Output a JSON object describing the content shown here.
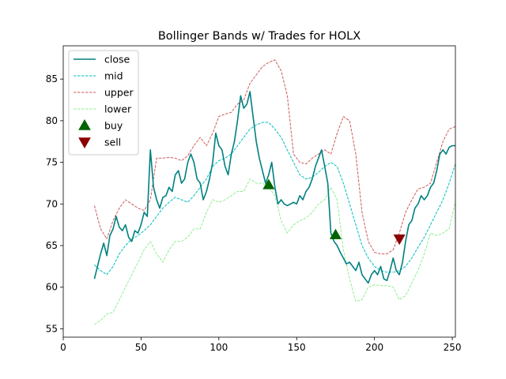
{
  "chart_data": {
    "type": "line",
    "title": "Bollinger Bands w/ Trades for HOLX",
    "xlabel": "",
    "ylabel": "",
    "xlim": [
      0,
      252
    ],
    "ylim": [
      54,
      89
    ],
    "xticks": [
      0,
      50,
      100,
      150,
      200,
      250
    ],
    "yticks": [
      55,
      60,
      65,
      70,
      75,
      80,
      85
    ],
    "grid": false,
    "legend_position": "top-left",
    "series": [
      {
        "name": "close",
        "style": "solid",
        "color": "#008080",
        "x": [
          20,
          22,
          24,
          26,
          28,
          30,
          32,
          34,
          36,
          38,
          40,
          42,
          44,
          46,
          48,
          50,
          52,
          54,
          56,
          58,
          60,
          62,
          64,
          66,
          68,
          70,
          72,
          74,
          76,
          78,
          80,
          82,
          84,
          86,
          88,
          90,
          92,
          94,
          96,
          98,
          100,
          102,
          104,
          106,
          108,
          110,
          112,
          114,
          116,
          118,
          120,
          122,
          124,
          126,
          128,
          130,
          132,
          134,
          136,
          138,
          140,
          142,
          144,
          146,
          148,
          150,
          152,
          154,
          156,
          158,
          160,
          162,
          164,
          166,
          168,
          170,
          172,
          174,
          176,
          178,
          180,
          182,
          184,
          186,
          188,
          190,
          192,
          194,
          196,
          198,
          200,
          202,
          204,
          206,
          208,
          210,
          212,
          214,
          216,
          218,
          220,
          222,
          224,
          226,
          228,
          230,
          232,
          234,
          236,
          238,
          240,
          242,
          244,
          246,
          248,
          250,
          252
        ],
        "values": [
          61.0,
          62.5,
          64.0,
          65.3,
          63.8,
          66.2,
          67.0,
          68.5,
          67.2,
          66.8,
          67.5,
          66.0,
          65.5,
          66.8,
          66.5,
          67.5,
          69.0,
          68.5,
          76.5,
          72.0,
          70.5,
          69.5,
          70.8,
          71.0,
          72.0,
          71.5,
          73.5,
          74.0,
          72.5,
          73.0,
          75.0,
          76.0,
          75.0,
          73.0,
          72.5,
          70.5,
          71.5,
          73.0,
          75.0,
          78.5,
          77.0,
          76.5,
          74.5,
          73.5,
          76.0,
          77.5,
          80.0,
          83.0,
          81.5,
          82.0,
          83.5,
          80.5,
          77.5,
          75.5,
          74.0,
          72.5,
          73.5,
          75.0,
          72.0,
          70.0,
          70.5,
          70.0,
          69.8,
          70.0,
          70.2,
          70.0,
          71.0,
          70.5,
          71.5,
          72.0,
          73.0,
          74.5,
          75.5,
          76.5,
          74.5,
          72.5,
          66.5,
          65.5,
          65.0,
          64.2,
          63.5,
          62.8,
          63.0,
          62.5,
          62.0,
          63.0,
          61.5,
          61.0,
          60.5,
          61.5,
          62.0,
          61.5,
          62.5,
          61.0,
          60.8,
          62.0,
          63.5,
          62.0,
          61.5,
          63.0,
          65.5,
          67.5,
          68.0,
          69.5,
          70.0,
          71.0,
          70.5,
          71.0,
          72.0,
          72.5,
          74.0,
          76.0,
          76.5,
          76.0,
          76.8,
          77.0,
          77.0
        ]
      },
      {
        "name": "mid",
        "style": "dashed",
        "color": "#00bfbf",
        "x": [
          20,
          24,
          28,
          32,
          36,
          40,
          44,
          48,
          52,
          56,
          60,
          64,
          68,
          72,
          76,
          80,
          84,
          88,
          92,
          96,
          100,
          104,
          108,
          112,
          116,
          120,
          124,
          128,
          132,
          136,
          140,
          144,
          148,
          152,
          156,
          160,
          164,
          168,
          172,
          176,
          180,
          184,
          188,
          192,
          196,
          200,
          204,
          208,
          212,
          216,
          220,
          224,
          228,
          232,
          236,
          240,
          244,
          248,
          252
        ],
        "values": [
          62.7,
          62.0,
          61.5,
          62.5,
          64.0,
          65.0,
          65.8,
          66.2,
          66.8,
          67.5,
          68.5,
          69.5,
          70.2,
          70.8,
          70.5,
          70.2,
          71.0,
          72.0,
          73.0,
          74.5,
          75.2,
          75.5,
          76.0,
          77.0,
          78.0,
          79.0,
          79.5,
          79.8,
          79.8,
          79.0,
          78.0,
          76.5,
          75.0,
          73.5,
          73.0,
          73.2,
          73.8,
          74.5,
          75.0,
          74.5,
          72.5,
          70.0,
          67.5,
          65.0,
          63.5,
          62.5,
          62.0,
          61.8,
          61.8,
          62.0,
          62.5,
          63.5,
          64.8,
          66.0,
          67.5,
          69.0,
          70.5,
          72.5,
          74.8
        ]
      },
      {
        "name": "upper",
        "style": "dashed",
        "color": "#cd5c5c",
        "x": [
          20,
          24,
          28,
          32,
          36,
          40,
          44,
          48,
          52,
          56,
          60,
          64,
          68,
          72,
          76,
          80,
          84,
          88,
          92,
          96,
          100,
          104,
          108,
          112,
          116,
          120,
          124,
          128,
          132,
          136,
          140,
          144,
          148,
          152,
          156,
          160,
          164,
          168,
          172,
          176,
          180,
          184,
          188,
          192,
          196,
          200,
          204,
          208,
          212,
          216,
          220,
          224,
          228,
          232,
          236,
          240,
          244,
          248,
          252
        ],
        "values": [
          69.8,
          67.0,
          65.8,
          68.0,
          69.5,
          70.5,
          70.0,
          69.5,
          69.2,
          70.5,
          75.5,
          75.5,
          75.6,
          75.5,
          75.2,
          75.8,
          77.0,
          78.0,
          77.0,
          78.5,
          80.5,
          80.8,
          81.0,
          82.0,
          82.5,
          84.5,
          85.5,
          86.5,
          87.0,
          87.3,
          86.0,
          83.0,
          76.0,
          75.0,
          74.8,
          75.5,
          76.0,
          76.5,
          76.0,
          78.5,
          80.5,
          80.0,
          76.0,
          69.0,
          65.5,
          64.2,
          64.0,
          64.0,
          64.5,
          66.5,
          69.0,
          70.5,
          71.8,
          72.0,
          72.5,
          75.0,
          77.5,
          79.0,
          79.3
        ]
      },
      {
        "name": "lower",
        "style": "dashed",
        "color": "#90ee90",
        "x": [
          20,
          24,
          28,
          32,
          36,
          40,
          44,
          48,
          52,
          56,
          60,
          64,
          68,
          72,
          76,
          80,
          84,
          88,
          92,
          96,
          100,
          104,
          108,
          112,
          116,
          120,
          124,
          128,
          132,
          136,
          140,
          144,
          148,
          152,
          156,
          160,
          164,
          168,
          172,
          176,
          180,
          184,
          188,
          192,
          196,
          200,
          204,
          208,
          212,
          216,
          220,
          224,
          228,
          232,
          236,
          240,
          244,
          248,
          252
        ],
        "values": [
          55.5,
          56.0,
          56.8,
          57.0,
          58.5,
          60.0,
          61.5,
          63.0,
          64.5,
          65.5,
          64.0,
          63.0,
          64.5,
          65.5,
          65.5,
          66.0,
          67.0,
          67.0,
          69.0,
          70.5,
          70.2,
          70.5,
          71.0,
          71.5,
          71.5,
          73.0,
          72.5,
          72.5,
          72.0,
          71.0,
          68.0,
          66.5,
          67.5,
          68.0,
          68.3,
          69.0,
          70.0,
          70.5,
          72.0,
          70.5,
          64.5,
          61.0,
          58.3,
          58.5,
          60.0,
          60.3,
          60.2,
          60.2,
          60.0,
          58.5,
          59.0,
          60.5,
          62.0,
          64.0,
          66.5,
          66.2,
          66.5,
          67.0,
          70.3
        ]
      },
      {
        "name": "buy",
        "marker": "triangle-up",
        "color": "#006400",
        "x": [
          132,
          175
        ],
        "values": [
          72.3,
          66.3
        ]
      },
      {
        "name": "sell",
        "marker": "triangle-down",
        "color": "#8b0000",
        "x": [
          216
        ],
        "values": [
          65.8
        ]
      }
    ]
  }
}
